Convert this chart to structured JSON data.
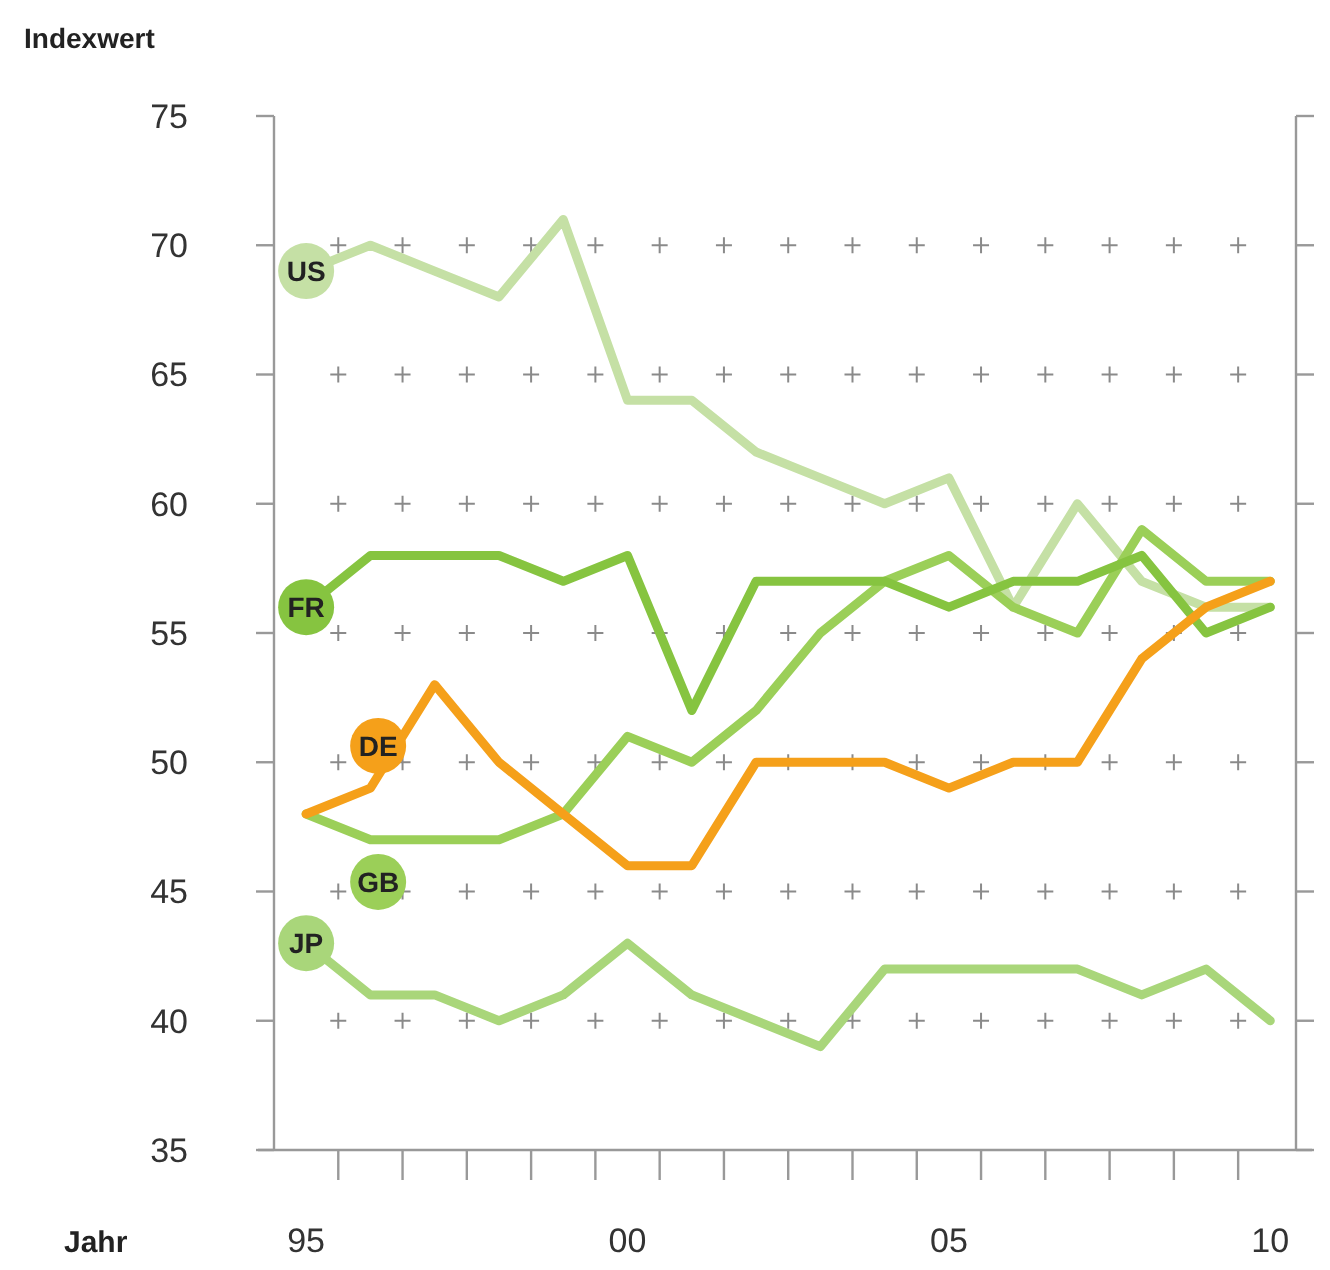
{
  "chart_data": {
    "type": "line",
    "xlabel": "Jahr",
    "ylabel": "Indexwert",
    "x": [
      1995,
      1996,
      1997,
      1998,
      1999,
      2000,
      2001,
      2002,
      2003,
      2004,
      2005,
      2006,
      2007,
      2008,
      2009,
      2010
    ],
    "xlim": [
      1994.5,
      2010.4
    ],
    "xticks": [
      {
        "value": 1995,
        "label": "95"
      },
      {
        "value": 1995.5,
        "label": null
      },
      {
        "value": 1996.5,
        "label": null
      },
      {
        "value": 1997.5,
        "label": null
      },
      {
        "value": 1998.5,
        "label": null
      },
      {
        "value": 1999.5,
        "label": null
      },
      {
        "value": 2000,
        "label": "00"
      },
      {
        "value": 2000.5,
        "label": null
      },
      {
        "value": 2001.5,
        "label": null
      },
      {
        "value": 2002.5,
        "label": null
      },
      {
        "value": 2003.5,
        "label": null
      },
      {
        "value": 2004.5,
        "label": null
      },
      {
        "value": 2005,
        "label": "05"
      },
      {
        "value": 2005.5,
        "label": null
      },
      {
        "value": 2006.5,
        "label": null
      },
      {
        "value": 2007.5,
        "label": null
      },
      {
        "value": 2008.5,
        "label": null
      },
      {
        "value": 2009.5,
        "label": null
      },
      {
        "value": 2010,
        "label": "10"
      }
    ],
    "ylim": [
      35,
      75
    ],
    "grid": true,
    "yticks": [
      35,
      40,
      45,
      50,
      55,
      60,
      65,
      70,
      75
    ],
    "marker": "none",
    "line_style": "solid",
    "series": [
      {
        "name": "US",
        "color": "#c5e0a5",
        "values": [
          69,
          70,
          69,
          68,
          71,
          64,
          64,
          62,
          61,
          60,
          61,
          56,
          60,
          57,
          56,
          56
        ]
      },
      {
        "name": "JP",
        "color": "#a9d67a",
        "values": [
          43,
          41,
          41,
          40,
          41,
          43,
          41,
          40,
          39,
          42,
          42,
          42,
          42,
          41,
          42,
          40
        ]
      },
      {
        "name": "GB",
        "color": "#9bcf58",
        "values": [
          48,
          47,
          47,
          47,
          48,
          51,
          50,
          52,
          55,
          57,
          58,
          56,
          55,
          59,
          57,
          57
        ]
      },
      {
        "name": "FR",
        "color": "#86c440",
        "values": [
          56,
          58,
          58,
          58,
          57,
          58,
          52,
          57,
          57,
          57,
          56,
          57,
          57,
          58,
          55,
          56
        ]
      },
      {
        "name": "DE",
        "color": "#f5a01a",
        "values": [
          48,
          49,
          53,
          50,
          48,
          46,
          46,
          50,
          50,
          50,
          49,
          50,
          50,
          54,
          56,
          57
        ]
      }
    ]
  }
}
